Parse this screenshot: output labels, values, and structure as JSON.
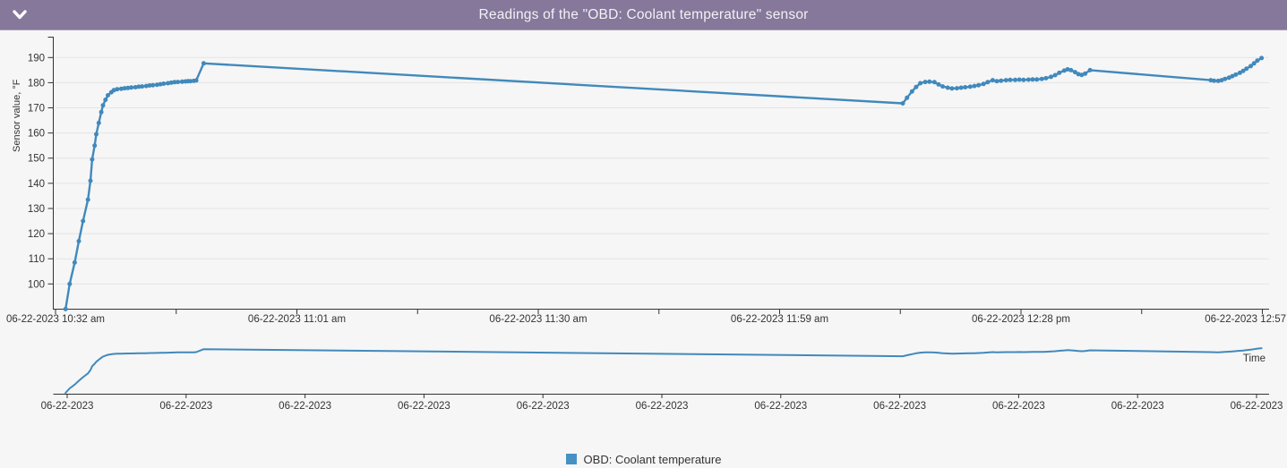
{
  "header": {
    "title": "Readings of the \"OBD: Coolant temperature\" sensor",
    "collapse_icon": "chevron-down"
  },
  "colors": {
    "header_bg": "#85789a",
    "header_text": "#f3f1f6",
    "page_bg": "#f6f6f6",
    "grid_line": "#e4e4e4",
    "axis": "#333333",
    "series": "#4189bc",
    "legend_marker": "#4691c3"
  },
  "legend": {
    "label": "OBD: Coolant temperature"
  },
  "chart_data": {
    "type": "line",
    "title": "Readings of the \"OBD: Coolant temperature\" sensor",
    "ylabel": "Sensor value, °F",
    "xlabel": "Time",
    "series_name": "OBD: Coolant temperature",
    "grid": "horizontal-only",
    "legend_position": "bottom-center",
    "ylim": [
      90,
      198
    ],
    "y_ticks": [
      100,
      110,
      120,
      130,
      140,
      150,
      160,
      170,
      180,
      190
    ],
    "x_axis": {
      "tick_labels": [
        "06-22-2023 10:32 am",
        "06-22-2023 11:01 am",
        "06-22-2023 11:30 am",
        "06-22-2023 11:59 am",
        "06-22-2023 12:28 pm",
        "06-22-2023 12:57"
      ],
      "tick_minutes": [
        0,
        29,
        58,
        87,
        116,
        145
      ],
      "minor_tick_minutes": [
        14.5,
        43.5,
        72.5,
        101.5,
        130.5
      ],
      "range_minutes": [
        0,
        145
      ]
    },
    "points_t_minutes_value_f": [
      [
        1.2,
        90
      ],
      [
        1.7,
        100
      ],
      [
        2.3,
        108.5
      ],
      [
        2.8,
        117
      ],
      [
        3.3,
        125
      ],
      [
        3.9,
        133.5
      ],
      [
        4.2,
        141
      ],
      [
        4.4,
        149.5
      ],
      [
        4.7,
        155
      ],
      [
        4.9,
        159.5
      ],
      [
        5.2,
        164
      ],
      [
        5.5,
        168.3
      ],
      [
        5.7,
        171
      ],
      [
        6.0,
        173.2
      ],
      [
        6.3,
        175
      ],
      [
        6.7,
        176.2
      ],
      [
        7.0,
        177
      ],
      [
        7.4,
        177.4
      ],
      [
        7.9,
        177.6
      ],
      [
        8.3,
        177.8
      ],
      [
        8.7,
        177.9
      ],
      [
        9.1,
        178.1
      ],
      [
        9.6,
        178.2
      ],
      [
        10.0,
        178.4
      ],
      [
        10.4,
        178.5
      ],
      [
        10.9,
        178.7
      ],
      [
        11.3,
        178.9
      ],
      [
        11.7,
        179.0
      ],
      [
        12.2,
        179.2
      ],
      [
        12.6,
        179.4
      ],
      [
        13.0,
        179.6
      ],
      [
        13.5,
        179.8
      ],
      [
        13.9,
        180.0
      ],
      [
        14.3,
        180.2
      ],
      [
        14.7,
        180.3
      ],
      [
        15.2,
        180.4
      ],
      [
        15.6,
        180.5
      ],
      [
        15.9,
        180.6
      ],
      [
        16.2,
        180.6
      ],
      [
        16.6,
        180.7
      ],
      [
        16.9,
        180.9
      ],
      [
        17.8,
        187.7
      ],
      [
        101.8,
        171.8
      ],
      [
        102.3,
        174.0
      ],
      [
        102.9,
        176.5
      ],
      [
        103.4,
        178.3
      ],
      [
        103.9,
        179.8
      ],
      [
        104.5,
        180.3
      ],
      [
        105.0,
        180.4
      ],
      [
        105.6,
        180.2
      ],
      [
        106.1,
        179.3
      ],
      [
        106.6,
        178.5
      ],
      [
        107.2,
        178.0
      ],
      [
        107.7,
        177.7
      ],
      [
        108.3,
        177.8
      ],
      [
        108.8,
        178.0
      ],
      [
        109.3,
        178.2
      ],
      [
        109.9,
        178.4
      ],
      [
        110.4,
        178.7
      ],
      [
        110.9,
        179.0
      ],
      [
        111.5,
        179.5
      ],
      [
        112.0,
        180.2
      ],
      [
        112.6,
        181.0
      ],
      [
        113.1,
        180.6
      ],
      [
        113.6,
        180.8
      ],
      [
        114.2,
        181.0
      ],
      [
        114.7,
        181.1
      ],
      [
        115.3,
        181.1
      ],
      [
        115.8,
        181.2
      ],
      [
        116.3,
        181.1
      ],
      [
        116.9,
        181.2
      ],
      [
        117.4,
        181.3
      ],
      [
        117.9,
        181.3
      ],
      [
        118.5,
        181.5
      ],
      [
        119.0,
        181.8
      ],
      [
        119.6,
        182.3
      ],
      [
        120.1,
        183.0
      ],
      [
        120.6,
        183.9
      ],
      [
        121.2,
        184.8
      ],
      [
        121.6,
        185.3
      ],
      [
        122.0,
        185.0
      ],
      [
        122.5,
        184.2
      ],
      [
        122.9,
        183.4
      ],
      [
        123.3,
        183.1
      ],
      [
        123.7,
        183.6
      ],
      [
        124.3,
        185.0
      ],
      [
        138.8,
        181.0
      ],
      [
        139.2,
        180.8
      ],
      [
        139.7,
        180.7
      ],
      [
        140.1,
        181.0
      ],
      [
        140.5,
        181.5
      ],
      [
        141.0,
        182.0
      ],
      [
        141.4,
        182.6
      ],
      [
        141.8,
        183.2
      ],
      [
        142.3,
        183.9
      ],
      [
        142.7,
        184.7
      ],
      [
        143.1,
        185.6
      ],
      [
        143.6,
        186.6
      ],
      [
        144.0,
        187.7
      ],
      [
        144.4,
        188.8
      ],
      [
        144.9,
        189.8
      ]
    ],
    "navigator": {
      "x_labels": [
        "06-22-2023",
        "06-22-2023",
        "06-22-2023",
        "06-22-2023",
        "06-22-2023",
        "06-22-2023",
        "06-22-2023",
        "06-22-2023",
        "06-22-2023",
        "06-22-2023",
        "06-22-2023"
      ]
    }
  }
}
